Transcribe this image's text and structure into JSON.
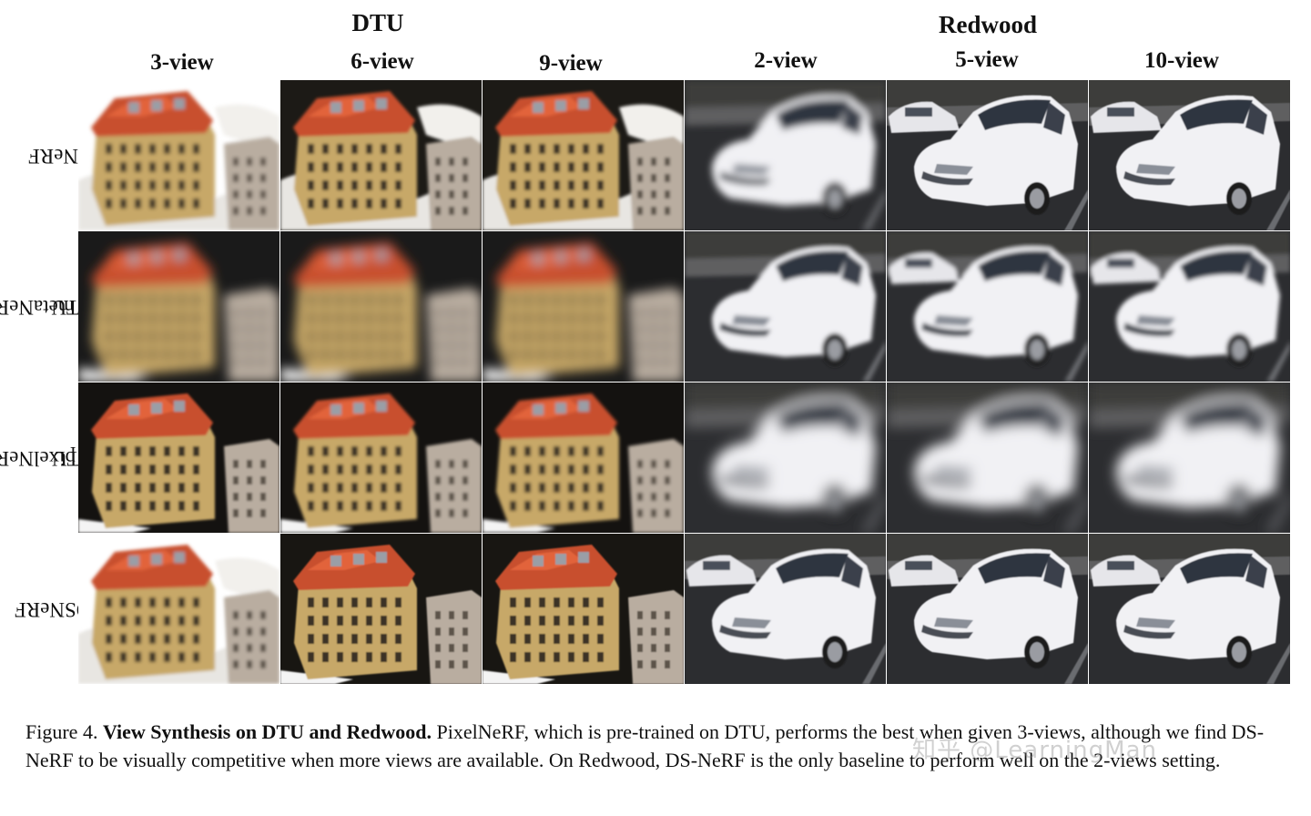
{
  "groups": {
    "dtu": "DTU",
    "redwood": "Redwood"
  },
  "columns": [
    "3-view",
    "6-view",
    "9-view",
    "2-view",
    "5-view",
    "10-view"
  ],
  "rows": [
    {
      "label_lines": [
        "NeRF"
      ]
    },
    {
      "label_lines": [
        "metaNeRF",
        "-DTU"
      ]
    },
    {
      "label_lines": [
        "pixelNeRF",
        "-DTU"
      ]
    },
    {
      "label_lines": [
        "DSNeRF"
      ]
    }
  ],
  "caption": {
    "figure_label": "Figure 4.",
    "bold_title": "View Synthesis on DTU and Redwood.",
    "body": "PixelNeRF, which is pre-trained on DTU, performs the best when given 3-views, although we find DS-NeRF to be visually competitive when more views are available. On Redwood, DS-NeRF is the only baseline to perform well on the 2-views setting."
  },
  "watermark": "知乎 @LearningMan",
  "image_contents": {
    "dtu": "building with orange roof",
    "redwood": "white car in parking lot"
  }
}
